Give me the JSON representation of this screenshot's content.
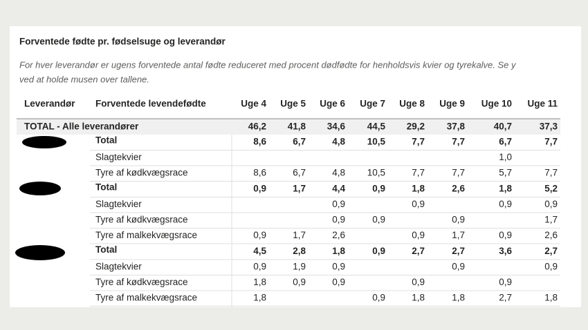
{
  "header": {
    "title": "Forventede fødte pr. fødselsuge og leverandør",
    "subtitle": [
      "For hver leverandør er ugens forventede antal fødte reduceret med procent dødfødte for henholdsvis kvier og tyrekalve. Se y",
      "ved at holde musen over tallene."
    ]
  },
  "table": {
    "columns": [
      "Leverandør",
      "Forventede levendefødte",
      "Uge 4",
      "Uge 5",
      "Uge 6",
      "Uge 7",
      "Uge 8",
      "Uge 9",
      "Uge 10",
      "Uge 11"
    ],
    "total": {
      "label": "TOTAL - Alle leverandører",
      "values": [
        "46,2",
        "41,8",
        "34,6",
        "44,5",
        "29,2",
        "37,8",
        "40,7",
        "37,3"
      ]
    },
    "groups": [
      {
        "rows": [
          {
            "label": "Total",
            "values": [
              "8,6",
              "6,7",
              "4,8",
              "10,5",
              "7,7",
              "7,7",
              "6,7",
              "7,7"
            ]
          },
          {
            "label": "Slagtekvier",
            "values": [
              null,
              null,
              null,
              null,
              null,
              null,
              "1,0",
              null
            ]
          },
          {
            "label": "Tyre af kødkvægsrace",
            "values": [
              "8,6",
              "6,7",
              "4,8",
              "10,5",
              "7,7",
              "7,7",
              "5,7",
              "7,7"
            ]
          }
        ]
      },
      {
        "rows": [
          {
            "label": "Total",
            "values": [
              "0,9",
              "1,7",
              "4,4",
              "0,9",
              "1,8",
              "2,6",
              "1,8",
              "5,2"
            ]
          },
          {
            "label": "Slagtekvier",
            "values": [
              null,
              null,
              "0,9",
              null,
              "0,9",
              null,
              "0,9",
              "0,9"
            ]
          },
          {
            "label": "Tyre af kødkvægsrace",
            "values": [
              null,
              null,
              "0,9",
              "0,9",
              null,
              "0,9",
              null,
              "1,7"
            ]
          },
          {
            "label": "Tyre af malkekvægsrace",
            "values": [
              "0,9",
              "1,7",
              "2,6",
              null,
              "0,9",
              "1,7",
              "0,9",
              "2,6"
            ]
          }
        ]
      },
      {
        "rows": [
          {
            "label": "Total",
            "values": [
              "4,5",
              "2,8",
              "1,8",
              "0,9",
              "2,7",
              "2,7",
              "3,6",
              "2,7"
            ]
          },
          {
            "label": "Slagtekvier",
            "values": [
              "0,9",
              "1,9",
              "0,9",
              null,
              null,
              "0,9",
              null,
              "0,9"
            ]
          },
          {
            "label": "Tyre af kødkvægsrace",
            "values": [
              "1,8",
              "0,9",
              "0,9",
              null,
              "0,9",
              null,
              "0,9",
              null
            ]
          },
          {
            "label": "Tyre af malkekvægsrace",
            "values": [
              "1,8",
              null,
              null,
              "0,9",
              "1,8",
              "1,8",
              "2,7",
              "1,8"
            ]
          }
        ]
      }
    ]
  }
}
